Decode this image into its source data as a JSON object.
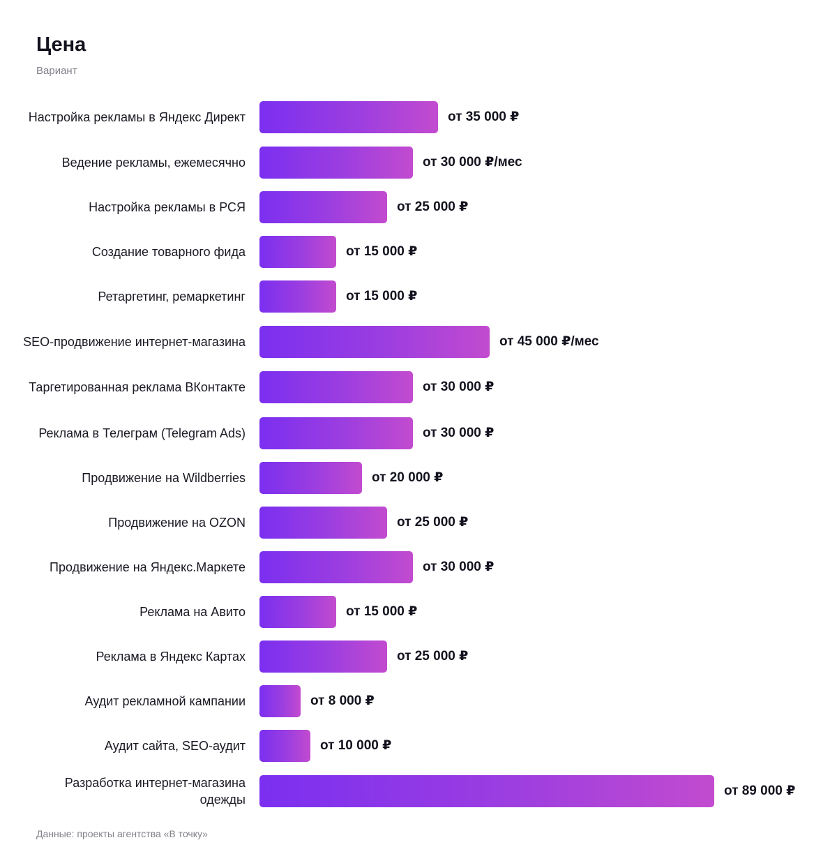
{
  "header": {
    "title": "Цена",
    "subtitle": "Вариант"
  },
  "footer": {
    "source": "Данные: проекты агентства «В точку»"
  },
  "colors": {
    "bar_start": "#7b2ff0",
    "bar_end": "#c24bcf",
    "text": "#13131f",
    "muted": "#80808a"
  },
  "chart_data": {
    "type": "bar",
    "orientation": "horizontal",
    "title": "Цена",
    "subtitle": "Вариант",
    "xlim": [
      0,
      89000
    ],
    "grid": false,
    "categories": [
      "Настройка рекламы в Яндекс Директ",
      "Ведение рекламы, ежемесячно",
      "Настройка рекламы в РСЯ",
      "Создание товарного фида",
      "Ретаргетинг, ремаркетинг",
      "SEO-продвижение интернет-магазина",
      "Таргетированная реклама ВКонтакте",
      "Реклама в Телеграм (Telegram Ads)",
      "Продвижение на Wildberries",
      "Продвижение на OZON",
      "Продвижение на Яндекс.Маркете",
      "Реклама на Авито",
      "Реклама в Яндекс Картах",
      "Аудит рекламной кампании",
      "Аудит сайта, SEO-аудит",
      "Разработка интернет-магазина одежды"
    ],
    "values": [
      35000,
      30000,
      25000,
      15000,
      15000,
      45000,
      30000,
      30000,
      20000,
      25000,
      30000,
      15000,
      25000,
      8000,
      10000,
      89000
    ],
    "value_labels": [
      "от 35 000 ₽",
      "от 30 000 ₽/мес",
      "от 25 000 ₽",
      "от 15 000 ₽",
      "от 15 000 ₽",
      "от 45 000 ₽/мес",
      "от 30 000 ₽",
      "от 30 000 ₽",
      "от 20 000 ₽",
      "от 25 000 ₽",
      "от 30 000 ₽",
      "от 15 000 ₽",
      "от 25 000 ₽",
      "от 8 000 ₽",
      "от 10 000 ₽",
      "от 89 000 ₽"
    ]
  }
}
